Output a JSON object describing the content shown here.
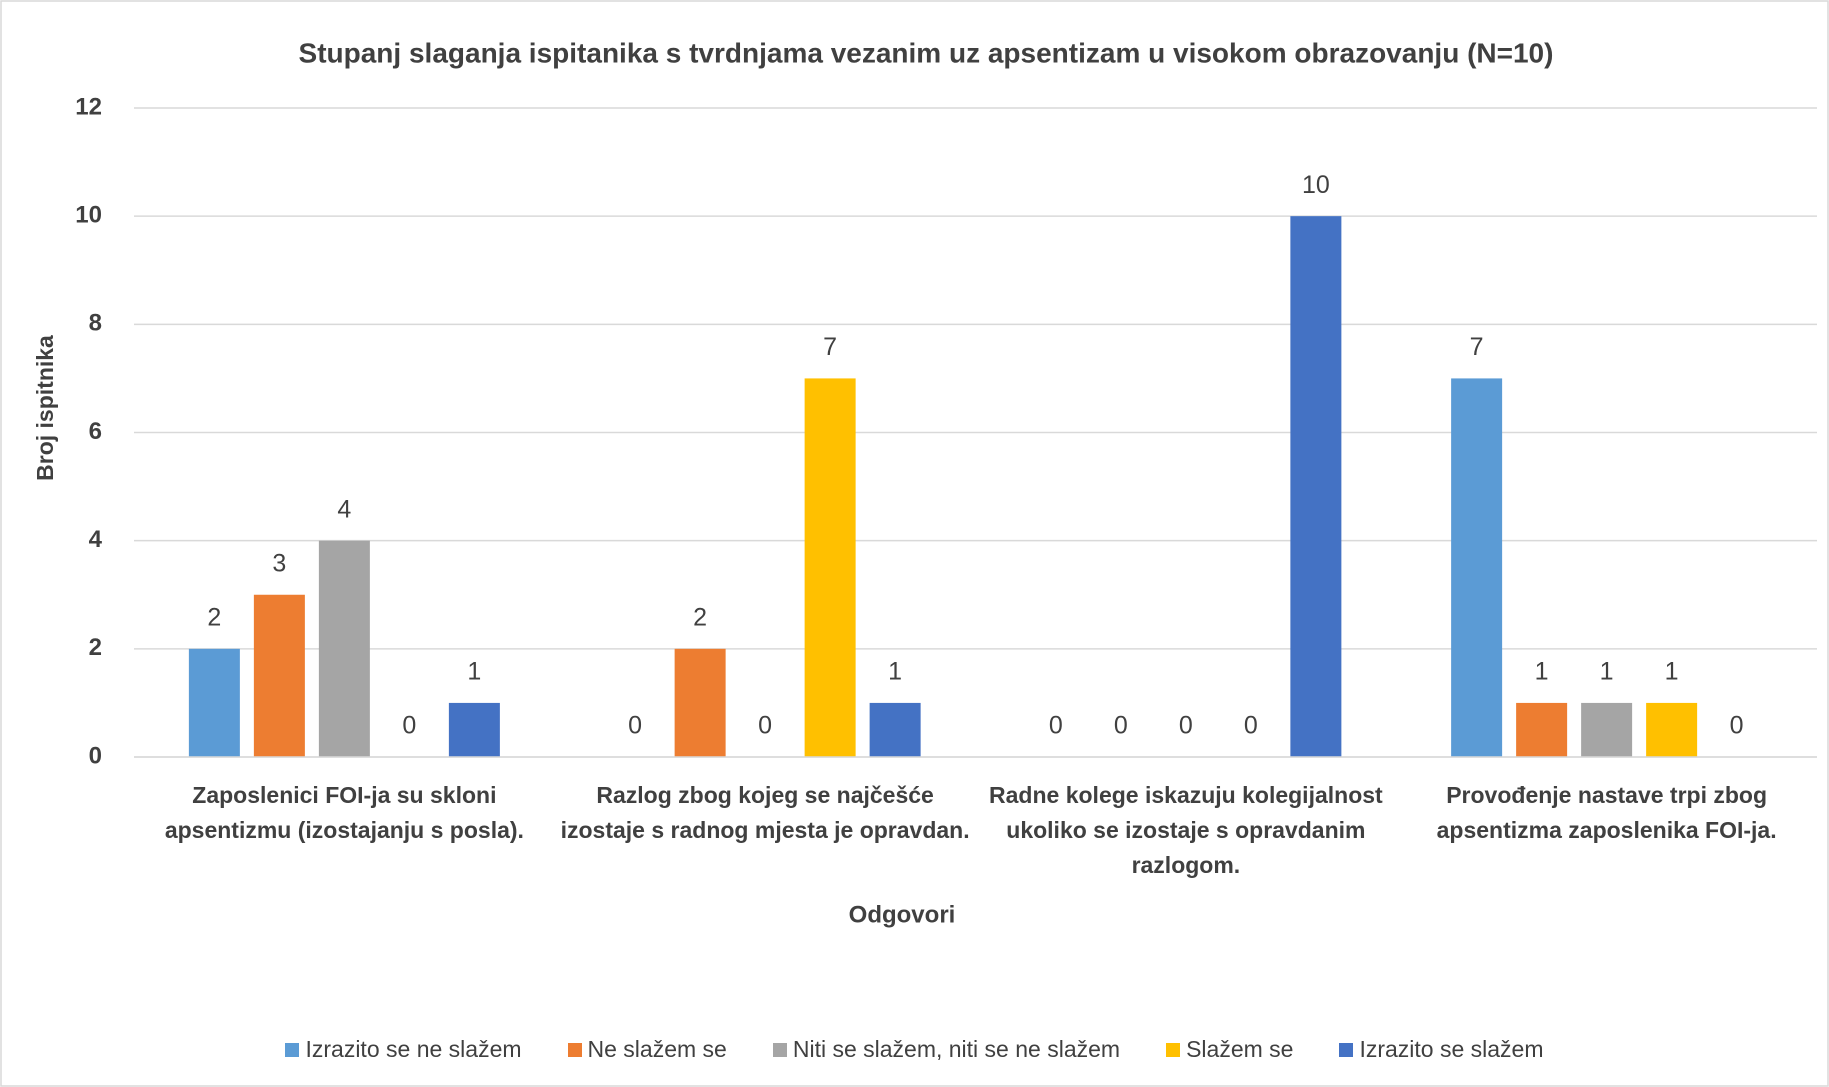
{
  "chart_data": {
    "type": "bar",
    "title": "Stupanj slaganja ispitanika s tvrdnjama vezanim uz apsentizam u visokom obrazovanju (N=10)",
    "x_label": "Odgovori",
    "y_label": "Broj ispitnika",
    "categories": [
      "Zaposlenici FOI-ja su skloni apsentizmu (izostajanju s posla).",
      "Razlog zbog kojeg se najčešće izostaje s radnog mjesta je opravdan.",
      "Radne kolege iskazuju kolegijalnost ukoliko se izostaje s opravdanim razlogom.",
      "Provođenje nastave trpi zbog apsentizma zaposlenika FOI-ja."
    ],
    "series": [
      {
        "name": "Izrazito se ne slažem",
        "color": "#5b9bd5",
        "values": [
          2,
          0,
          0,
          7
        ]
      },
      {
        "name": "Ne slažem se",
        "color": "#ed7d31",
        "values": [
          3,
          2,
          0,
          1
        ]
      },
      {
        "name": "Niti se slažem, niti se ne slažem",
        "color": "#a5a5a5",
        "values": [
          4,
          0,
          0,
          1
        ]
      },
      {
        "name": "Slažem se",
        "color": "#ffc000",
        "values": [
          0,
          7,
          0,
          1
        ]
      },
      {
        "name": "Izrazito se slažem",
        "color": "#4472c4",
        "values": [
          1,
          1,
          10,
          0
        ]
      }
    ],
    "ylim": [
      0,
      12
    ],
    "yticks": [
      0,
      2,
      4,
      6,
      8,
      10,
      12
    ],
    "grid": true,
    "legend": "bottom"
  }
}
